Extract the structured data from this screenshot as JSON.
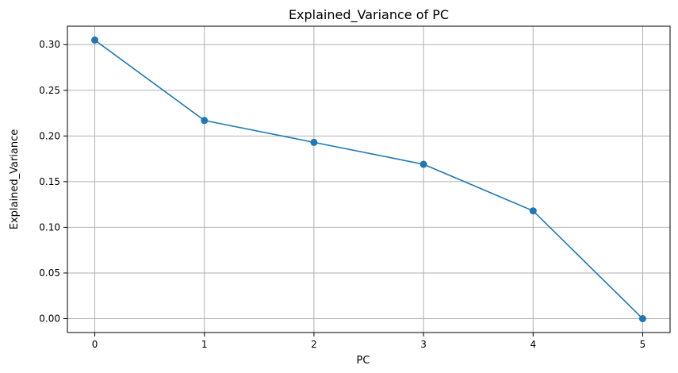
{
  "chart_data": {
    "type": "line",
    "title": "Explained_Variance of PC",
    "xlabel": "PC",
    "ylabel": "Explained_Variance",
    "x": [
      0,
      1,
      2,
      3,
      4,
      5
    ],
    "series": [
      {
        "values": [
          0.305,
          0.217,
          0.193,
          0.169,
          0.118,
          0.0
        ],
        "color": "#1f77b4",
        "marker": "circle"
      }
    ],
    "xticks": [
      "0",
      "1",
      "2",
      "3",
      "4",
      "5"
    ],
    "yticks": [
      "0.00",
      "0.05",
      "0.10",
      "0.15",
      "0.20",
      "0.25",
      "0.30"
    ],
    "xlim": [
      -0.25,
      5.25
    ],
    "ylim": [
      -0.0152,
      0.3202
    ],
    "grid": true,
    "axis_color": "#000000",
    "grid_color": "#b0b0b0"
  }
}
